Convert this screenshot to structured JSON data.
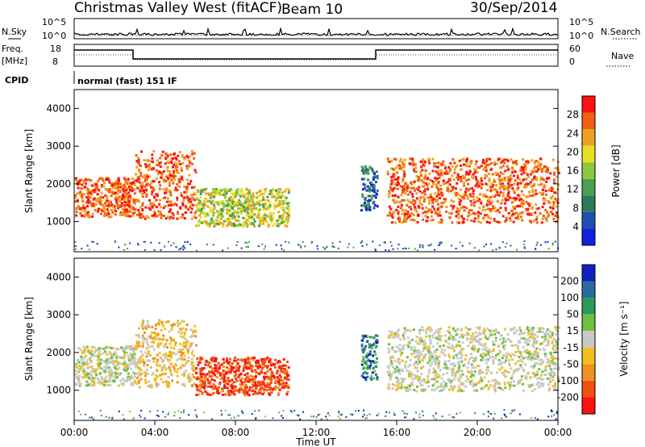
{
  "header": {
    "station": "Christmas Valley West (fitACF)",
    "beam": "Beam 10",
    "date": "30/Sep/2014"
  },
  "top_panels": {
    "nsky_label": "N.Sky",
    "nsearch_label": "N.Search",
    "noise_ticks": [
      "10^5",
      "10^0"
    ],
    "freq_label": "Freq.",
    "freq_unit": "[MHz]",
    "freq_ticks": [
      "18",
      "8"
    ],
    "nave_label": "Nave",
    "nave_ticks": [
      "60",
      "0"
    ],
    "cpid_label": "CPID",
    "cpid_value": "normal (fast) 151 IF"
  },
  "chart_data": [
    {
      "type": "heatmap",
      "name": "power-panel",
      "ylabel": "Slant Range [km]",
      "yticks": [
        1000,
        2000,
        3000,
        4000
      ],
      "ylim": [
        200,
        4500
      ],
      "xlim_hours": [
        0,
        24
      ],
      "colorbar": {
        "label": "Power [dB]",
        "ticks": [
          "4",
          "8",
          "12",
          "16",
          "20",
          "24",
          "28"
        ],
        "colors": [
          "#1020e0",
          "#1e50b0",
          "#2d7a5a",
          "#48a050",
          "#8bc83c",
          "#e8e020",
          "#f0a020",
          "#f06010",
          "#ff1010"
        ]
      },
      "regions": [
        {
          "t0": 0.0,
          "t1": 3.0,
          "r0": 1150,
          "r1": 2200,
          "level": "high"
        },
        {
          "t0": 3.0,
          "t1": 6.0,
          "r0": 1100,
          "r1": 2900,
          "level": "high"
        },
        {
          "t0": 6.0,
          "t1": 10.6,
          "r0": 900,
          "r1": 1900,
          "level": "mid"
        },
        {
          "t0": 14.2,
          "t1": 15.0,
          "r0": 1300,
          "r1": 2500,
          "level": "low"
        },
        {
          "t0": 15.5,
          "t1": 24.0,
          "r0": 1000,
          "r1": 2700,
          "level": "high"
        }
      ]
    },
    {
      "type": "heatmap",
      "name": "velocity-panel",
      "ylabel": "Slant Range [km]",
      "yticks": [
        1000,
        2000,
        3000,
        4000
      ],
      "ylim": [
        200,
        4500
      ],
      "xlim_hours": [
        0,
        24
      ],
      "xticks": [
        "00:00",
        "04:00",
        "08:00",
        "12:00",
        "16:00",
        "20:00",
        "00:00"
      ],
      "xlabel": "Time UT",
      "colorbar": {
        "label": "Velocity [m s⁻¹]",
        "ticks": [
          "200",
          "100",
          "50",
          "15",
          "-15",
          "-50",
          "-100",
          "-200"
        ],
        "colors": [
          "#1020c0",
          "#2a6aa0",
          "#2a9a5a",
          "#70c040",
          "#c8c8c8",
          "#f0c020",
          "#f09020",
          "#f05010",
          "#ff1010"
        ]
      },
      "regions": [
        {
          "t0": 0.0,
          "t1": 3.0,
          "r0": 1150,
          "r1": 2200,
          "level": "zero"
        },
        {
          "t0": 3.0,
          "t1": 6.0,
          "r0": 1100,
          "r1": 2900,
          "level": "weak-neg"
        },
        {
          "t0": 6.0,
          "t1": 10.6,
          "r0": 900,
          "r1": 1900,
          "level": "strong-neg"
        },
        {
          "t0": 14.2,
          "t1": 15.0,
          "r0": 1300,
          "r1": 2500,
          "level": "pos"
        },
        {
          "t0": 15.5,
          "t1": 24.0,
          "r0": 1000,
          "r1": 2700,
          "level": "zero"
        }
      ]
    }
  ]
}
